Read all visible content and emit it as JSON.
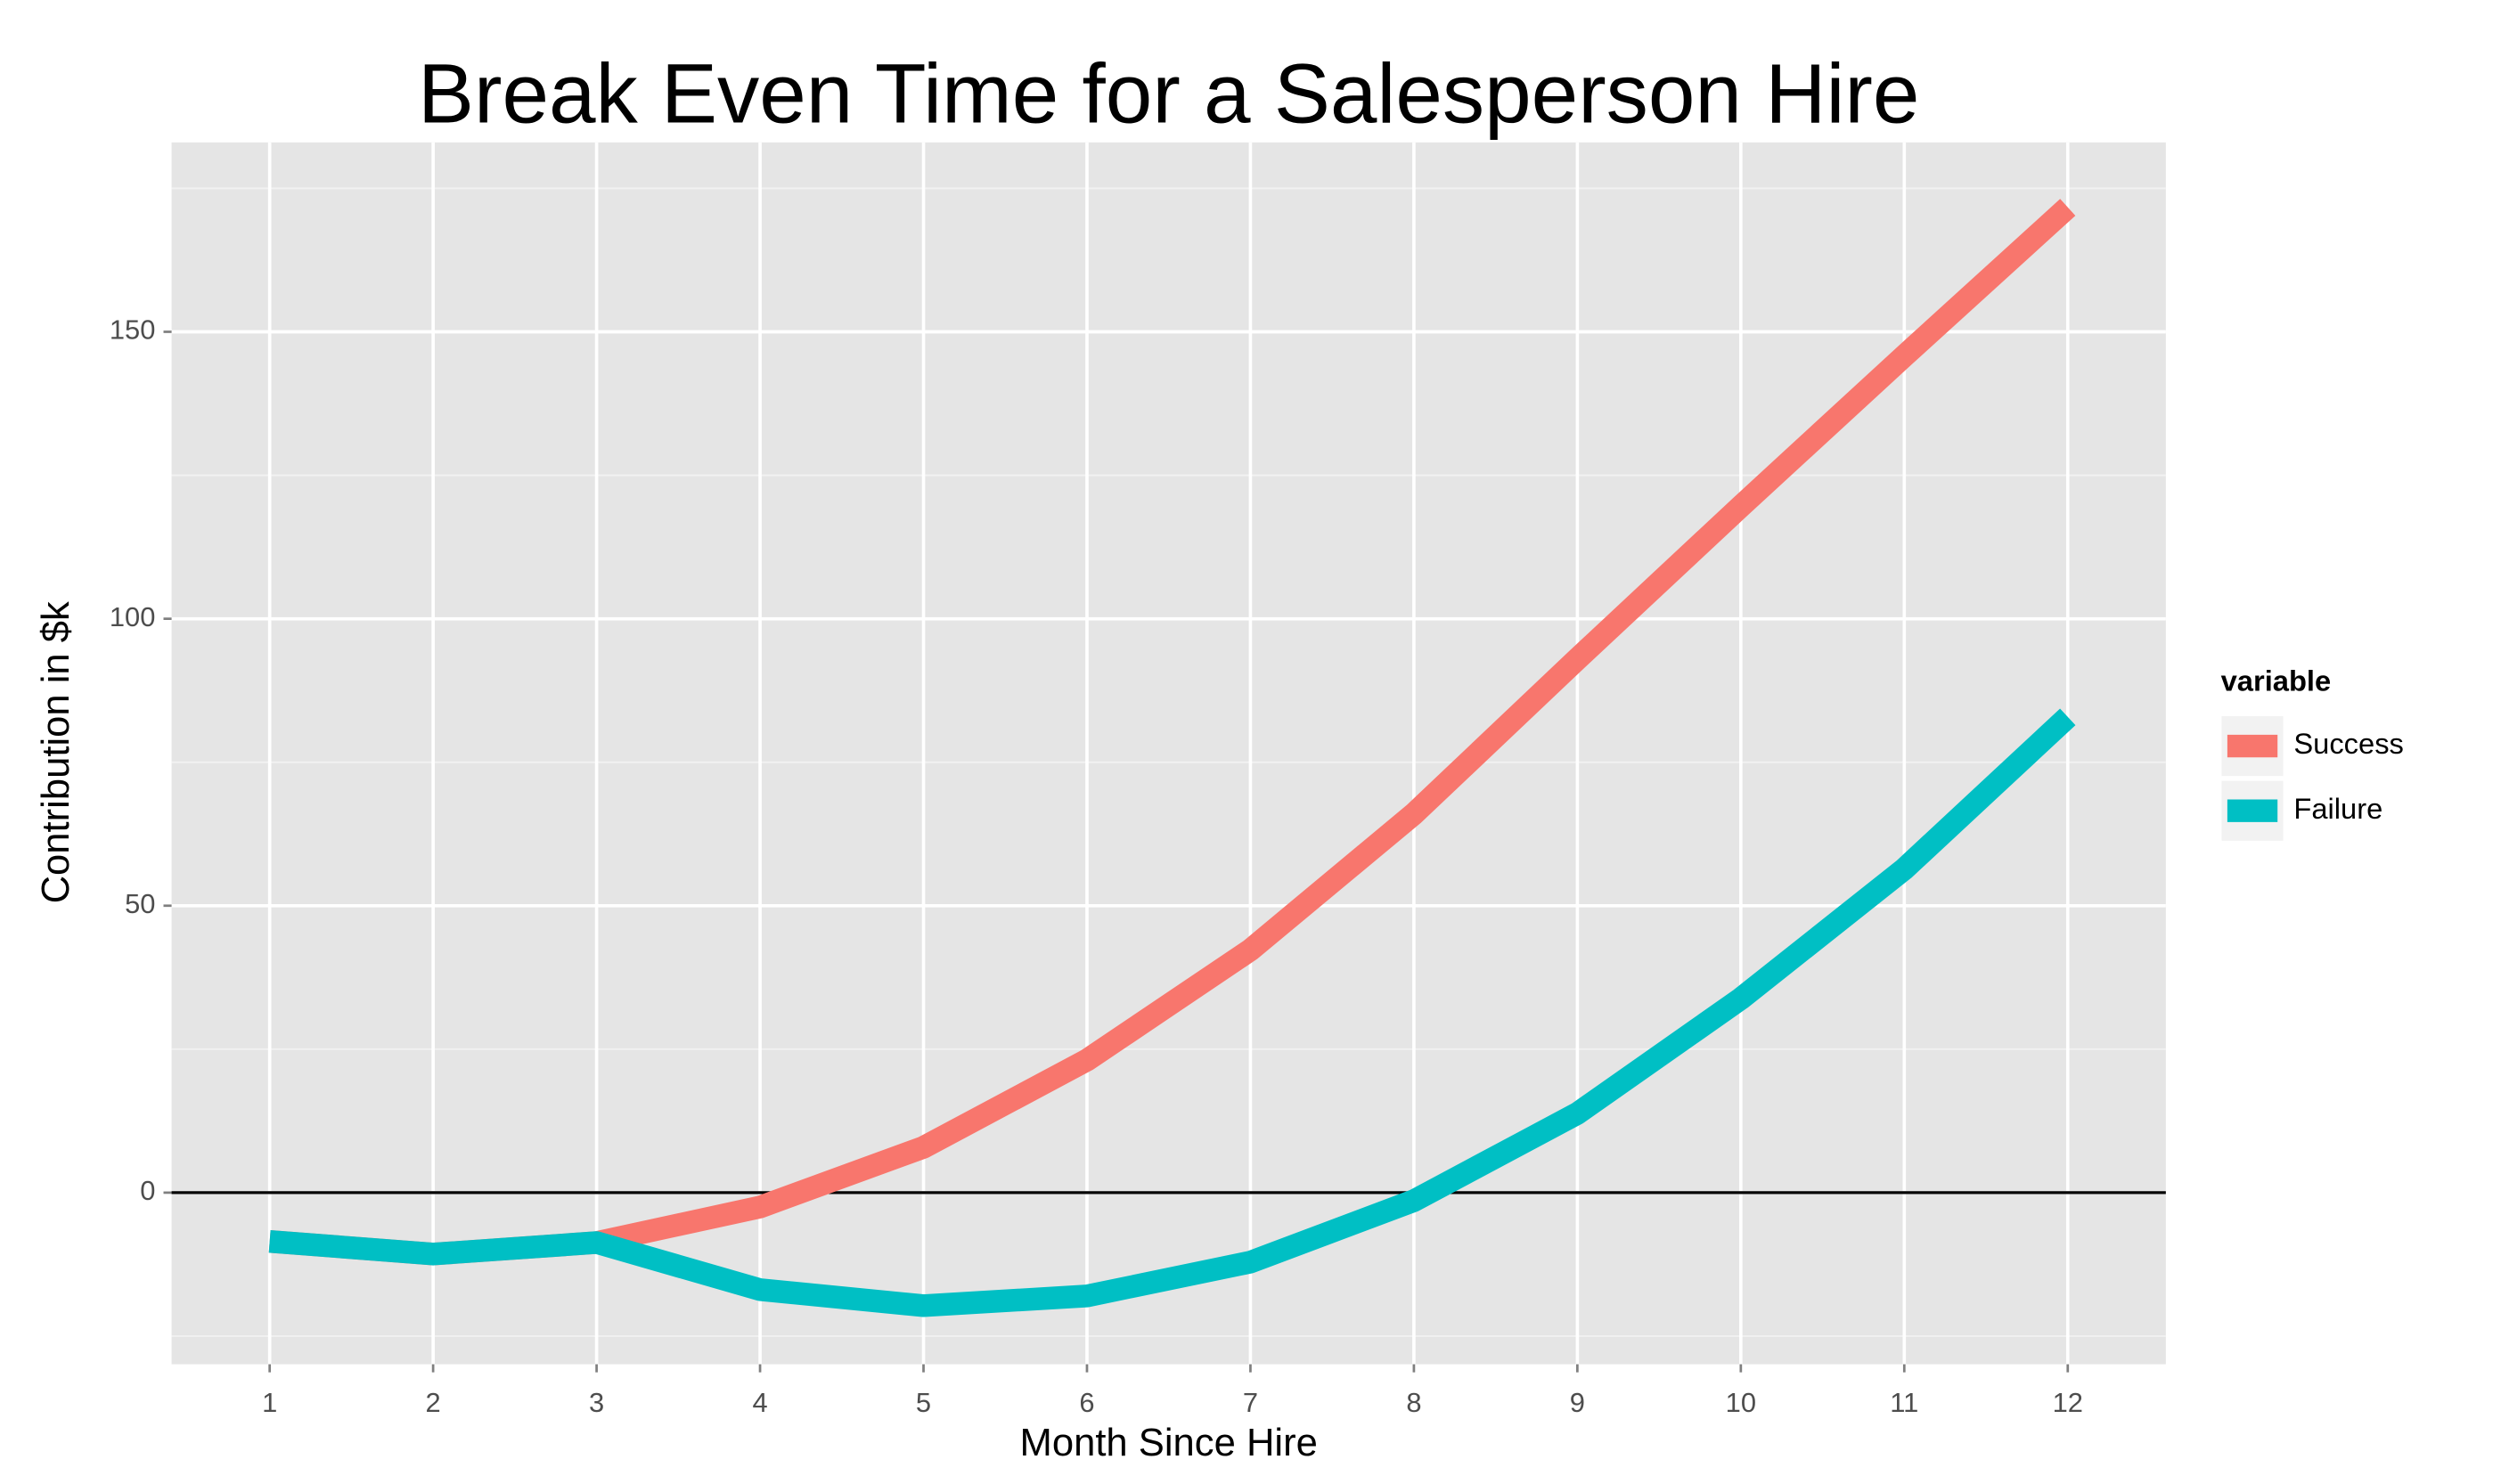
{
  "chart_data": {
    "type": "line",
    "title": "Break Even Time for a Salesperson Hire",
    "x_label": "Month Since Hire",
    "y_label": "Contribution in $k",
    "x": [
      1,
      2,
      3,
      4,
      5,
      6,
      7,
      8,
      9,
      10,
      11,
      12
    ],
    "series": [
      {
        "name": "Success",
        "color": "#F8766D",
        "values": [
          -8.5,
          -10.7,
          -8.7,
          -2.5,
          7.9,
          23.1,
          42.3,
          66,
          93,
          119.6,
          145.8,
          171.7
        ]
      },
      {
        "name": "Failure",
        "color": "#00BFC4",
        "values": [
          -8.5,
          -10.7,
          -8.7,
          -16.9,
          -19.7,
          -18,
          -12.1,
          -1.4,
          13.8,
          33.8,
          56.4,
          82.9
        ]
      }
    ],
    "xlim": [
      0.4,
      12.6
    ],
    "ylim": [
      -29.9,
      183
    ],
    "xticks": [
      1,
      2,
      3,
      4,
      5,
      6,
      7,
      8,
      9,
      10,
      11,
      12
    ],
    "yticks": [
      0,
      50,
      100,
      150
    ],
    "yminorticks": [
      -25,
      25,
      75,
      125,
      175
    ],
    "reference_line": 0,
    "legend_title": "variable",
    "legend_position": "right",
    "grid": true
  }
}
